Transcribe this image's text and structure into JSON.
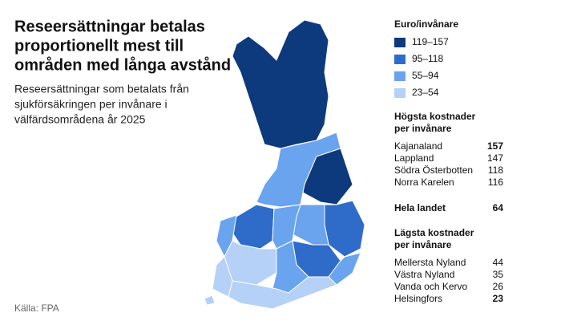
{
  "header": {
    "title": [
      "Reseersättningar betalas",
      "proportionellt mest till",
      "områden med långa avstånd"
    ],
    "subtitle": [
      "Reseersättningar som betalats från",
      "sjukförsäkringen per invånare i",
      "välfärdsområdena år 2025"
    ]
  },
  "legend": {
    "title": "Euro/invånare",
    "items": [
      {
        "label": "119–157",
        "color": "#0d3a7c"
      },
      {
        "label": "95–118",
        "color": "#2f6cc9"
      },
      {
        "label": "55–94",
        "color": "#6aa3ee"
      },
      {
        "label": "23–54",
        "color": "#b5d1f7"
      }
    ]
  },
  "highest": {
    "heading": [
      "Högsta kostnader",
      "per invånare"
    ],
    "rows": [
      {
        "name": "Kajanaland",
        "value": 157,
        "bold": true
      },
      {
        "name": "Lappland",
        "value": 147,
        "bold": false
      },
      {
        "name": "Södra Österbotten",
        "value": 118,
        "bold": false
      },
      {
        "name": "Norra Karelen",
        "value": 116,
        "bold": false
      }
    ]
  },
  "whole_country": {
    "name": "Hela landet",
    "value": 64,
    "bold": true
  },
  "lowest": {
    "heading": [
      "Lägsta kostnader",
      "per invånare"
    ],
    "rows": [
      {
        "name": "Mellersta Nyland",
        "value": 44,
        "bold": false
      },
      {
        "name": "Västra Nyland",
        "value": 35,
        "bold": false
      },
      {
        "name": "Vanda och Kervo",
        "value": 26,
        "bold": false
      },
      {
        "name": "Helsingfors",
        "value": 23,
        "bold": true
      }
    ]
  },
  "source": "Källa: FPA"
}
